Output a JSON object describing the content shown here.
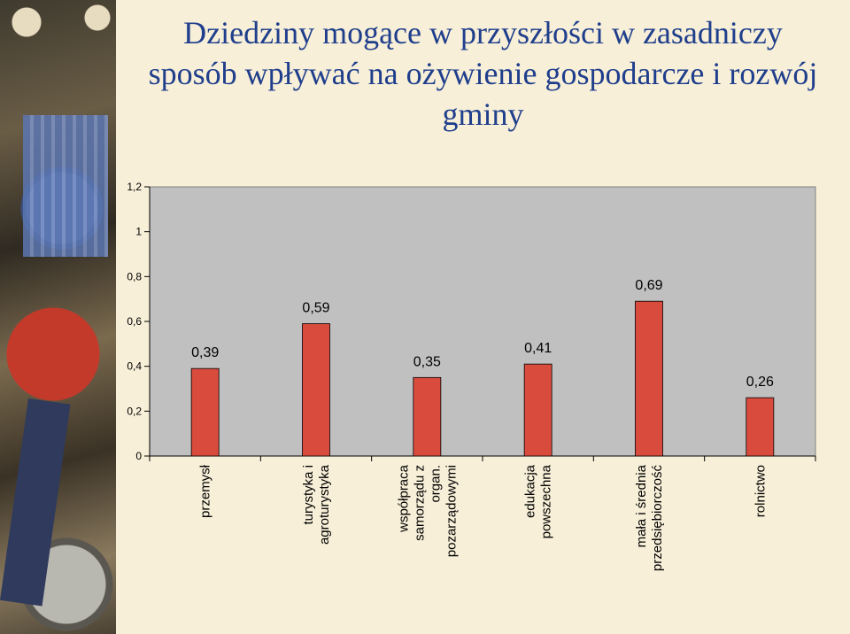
{
  "slide": {
    "title_lines": [
      "Dziedziny mogące w przyszłości w zasadniczy",
      "sposób wpływać na ożywienie gospodarcze i rozwój",
      "gminy"
    ]
  },
  "chart_data": {
    "type": "bar",
    "title": "",
    "categories": [
      [
        "przemysł"
      ],
      [
        "turystyka i",
        "agroturystyka"
      ],
      [
        "współpraca",
        "samorządu z",
        "organ.",
        "pozarządowymi"
      ],
      [
        "edukacja",
        "powszechna"
      ],
      [
        "mała i średnia",
        "przedsiębiorczość"
      ],
      [
        "rolnictwo"
      ]
    ],
    "values": [
      0.39,
      0.59,
      0.35,
      0.41,
      0.69,
      0.26
    ],
    "data_labels": [
      "0,39",
      "0,59",
      "0,35",
      "0,41",
      "0,69",
      "0,26"
    ],
    "y_ticks": [
      0,
      0.2,
      0.4,
      0.6,
      0.8,
      1,
      1.2
    ],
    "y_tick_labels": [
      "0",
      "0,2",
      "0,4",
      "0,6",
      "0,8",
      "1",
      "1,2"
    ],
    "ylim": [
      0,
      1.2
    ],
    "xlabel": "",
    "ylabel": "",
    "grid": false,
    "legend": "none",
    "bar_color": "#d94c3d",
    "plot_background": "#c0c0c0"
  }
}
